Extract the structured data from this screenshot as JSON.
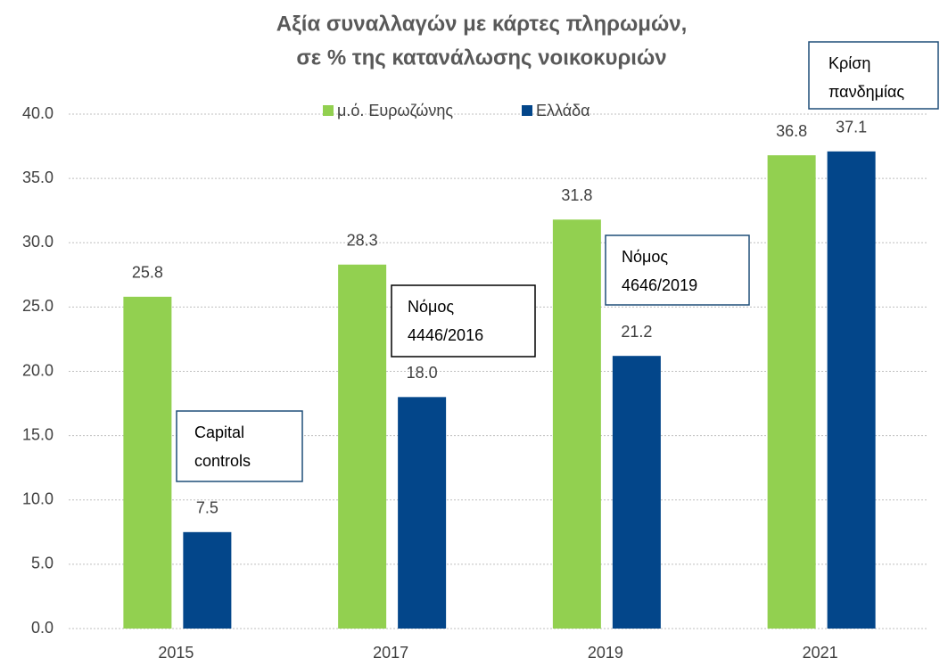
{
  "chart_data": {
    "type": "bar",
    "title": [
      "Αξία συναλλαγών με κάρτες πληρωμών,",
      "σε % της κατανάλωσης νοικοκυριών"
    ],
    "categories": [
      "2015",
      "2017",
      "2019",
      "2021"
    ],
    "series": [
      {
        "name": "μ.ό. Ευρωζώνης",
        "color": "#92d050",
        "values": [
          25.8,
          28.3,
          31.8,
          36.8
        ]
      },
      {
        "name": "Ελλάδα",
        "color": "#03468a",
        "values": [
          7.5,
          18.0,
          21.2,
          37.1
        ],
        "value_labels": [
          "7.5",
          "18.0",
          "21.2",
          "37.1"
        ]
      }
    ],
    "ylim": [
      0,
      40
    ],
    "yticks": [
      {
        "value": 0,
        "label": "0.0"
      },
      {
        "value": 5,
        "label": "5.0"
      },
      {
        "value": 10,
        "label": "10.0"
      },
      {
        "value": 15,
        "label": "15.0"
      },
      {
        "value": 20,
        "label": "20.0"
      },
      {
        "value": 25,
        "label": "25.0"
      },
      {
        "value": 30,
        "label": "30.0"
      },
      {
        "value": 35,
        "label": "35.0"
      },
      {
        "value": 40,
        "label": "40.0"
      }
    ],
    "grid": true,
    "legend": "top",
    "annotations": [
      {
        "text": [
          "Capital",
          "controls"
        ],
        "color": "#1f4e79"
      },
      {
        "text": [
          "Νόμος",
          "4446/2016"
        ],
        "color": "#000000"
      },
      {
        "text": [
          "Νόμος",
          "4646/2019"
        ],
        "color": "#1f4e79"
      },
      {
        "text": [
          "Κρίση",
          "πανδημίας"
        ],
        "color": "#1f4e79"
      }
    ]
  }
}
